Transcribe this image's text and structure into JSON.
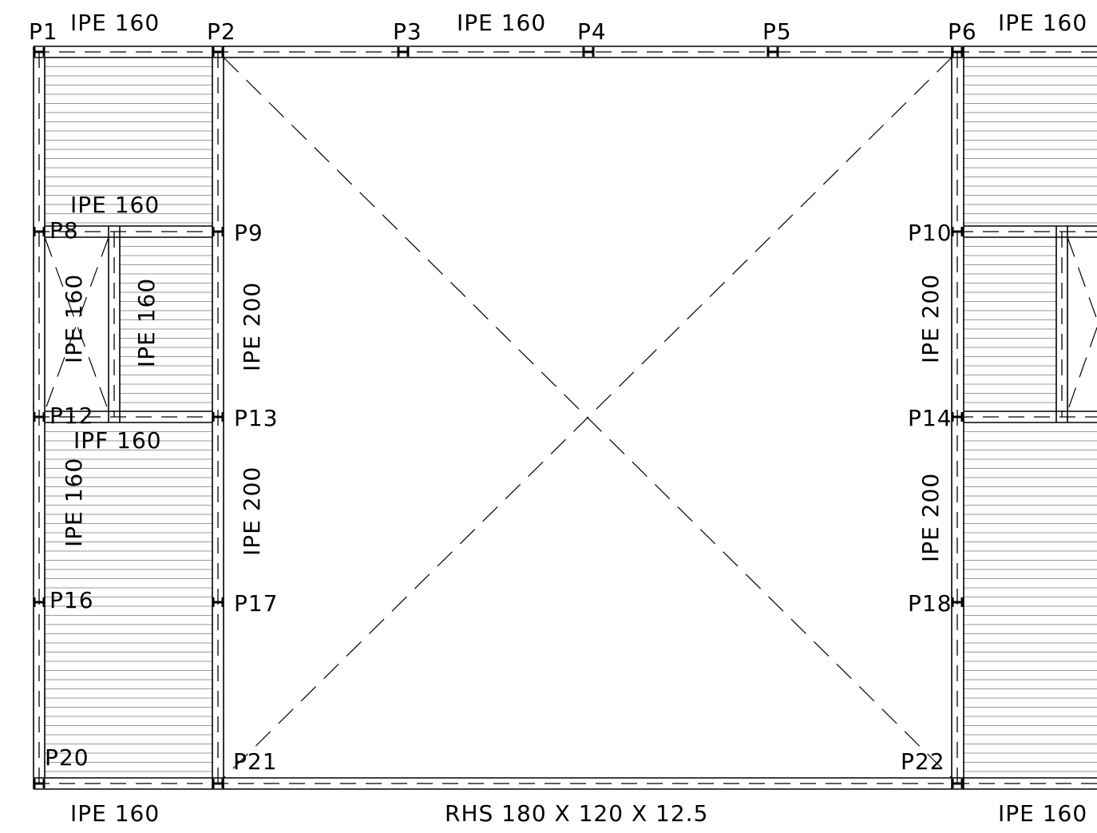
{
  "columns": {
    "p1": "P1",
    "p2": "P2",
    "p3": "P3",
    "p4": "P4",
    "p5": "P5",
    "p6": "P6",
    "p8": "P8",
    "p9": "P9",
    "p10": "P10",
    "p12": "P12",
    "p13": "P13",
    "p14": "P14",
    "p16": "P16",
    "p17": "P17",
    "p18": "P18",
    "p20": "P20",
    "p21": "P21",
    "p22": "P22"
  },
  "beams": {
    "top_left": "IPE 160",
    "top_mid": "IPE 160",
    "top_right": "IPE 160",
    "mid_left": "IPE 160",
    "mid_lower_left": "IPF 160",
    "bottom_left": "IPE 160",
    "bottom_mid": "RHS 180 X 120 X 12.5",
    "bottom_right": "IPE 160",
    "vert_opening_a": "IPE 160",
    "vert_opening_b": "IPE 160",
    "vert_lower_left": "IPE 160",
    "vert_p9_p13": "IPE 200",
    "vert_p13_p17": "IPE 200",
    "vert_p10_p14": "IPE 200",
    "vert_p14_p18": "IPE 200"
  }
}
